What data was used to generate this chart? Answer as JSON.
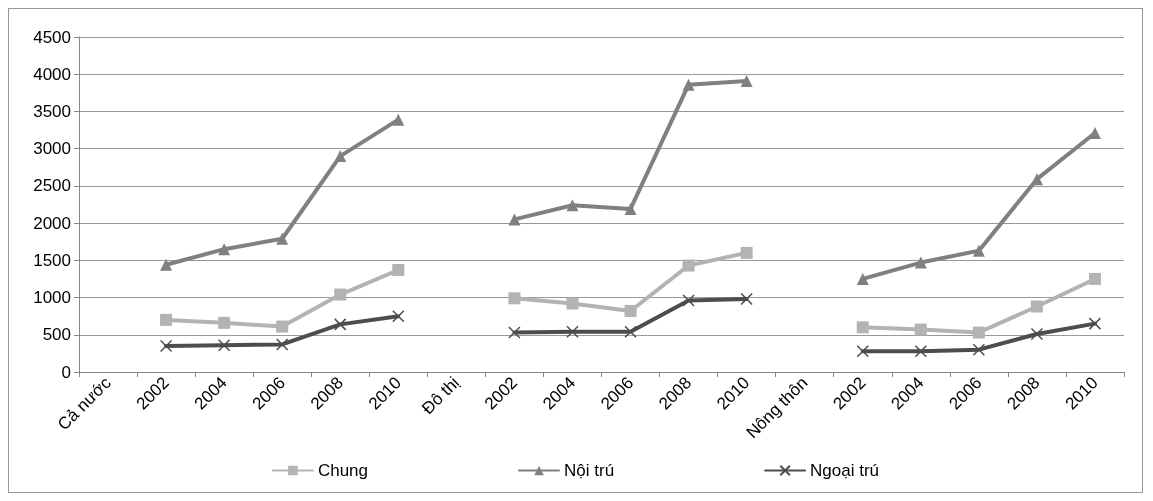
{
  "chart_data": {
    "type": "line",
    "categories": [
      "Cả nước",
      "2002",
      "2004",
      "2006",
      "2008",
      "2010",
      "Đô thị",
      "2002",
      "2004",
      "2006",
      "2008",
      "2010",
      "Nông thôn",
      "2002",
      "2004",
      "2006",
      "2008",
      "2010"
    ],
    "series": [
      {
        "name": "Chung",
        "color": "#b3b3b3",
        "marker": "square",
        "values": [
          null,
          700,
          660,
          610,
          1040,
          1370,
          null,
          990,
          920,
          820,
          1430,
          1600,
          null,
          600,
          570,
          530,
          880,
          1250
        ]
      },
      {
        "name": "Nội trú",
        "color": "#808080",
        "marker": "triangle",
        "values": [
          null,
          1440,
          1650,
          1790,
          2900,
          3390,
          null,
          2050,
          2240,
          2190,
          3860,
          3910,
          null,
          1250,
          1470,
          1630,
          2590,
          3210
        ]
      },
      {
        "name": "Ngoại trú",
        "color": "#4d4d4d",
        "marker": "cross",
        "values": [
          null,
          350,
          360,
          370,
          640,
          750,
          null,
          530,
          540,
          540,
          960,
          980,
          null,
          280,
          280,
          300,
          510,
          650
        ]
      }
    ],
    "ylim": [
      0,
      4500
    ],
    "yticks": [
      0,
      500,
      1000,
      1500,
      2000,
      2500,
      3000,
      3500,
      4000,
      4500
    ],
    "grid": "y",
    "legend": "bottom",
    "line_style": "solid"
  }
}
